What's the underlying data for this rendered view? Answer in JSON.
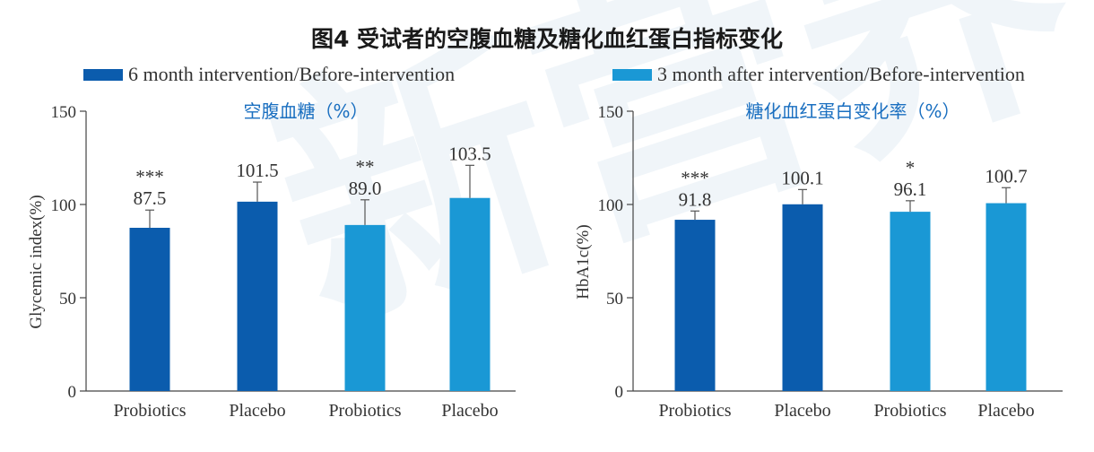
{
  "title": "图4 受试者的空腹血糖及糖化血红蛋白指标变化",
  "legend": [
    {
      "label": "6 month intervention/Before-intervention",
      "color": "#0b5cad"
    },
    {
      "label": "3 month after intervention/Before-intervention",
      "color": "#1a98d5"
    }
  ],
  "watermark": "新营养",
  "chart_data": [
    {
      "type": "bar",
      "title": "空腹血糖（%）",
      "ylabel": "Glycemic index(%)",
      "xlabel": "",
      "ylim": [
        0,
        150
      ],
      "yticks": [
        0,
        50,
        100,
        150
      ],
      "categories": [
        "Probiotics",
        "Placebo",
        "Probiotics",
        "Placebo"
      ],
      "values": [
        87.5,
        101.5,
        89.0,
        103.5
      ],
      "value_labels": [
        "87.5",
        "101.5",
        "89.0",
        "103.5"
      ],
      "error_upper": [
        97.0,
        112.0,
        102.5,
        121.0
      ],
      "significance": [
        "***",
        "",
        "**",
        ""
      ],
      "bar_colors": [
        "#0b5cad",
        "#0b5cad",
        "#1a98d5",
        "#1a98d5"
      ]
    },
    {
      "type": "bar",
      "title": "糖化血红蛋白变化率（%）",
      "ylabel": "HbA1c(%)",
      "xlabel": "",
      "ylim": [
        0,
        150
      ],
      "yticks": [
        0,
        50,
        100,
        150
      ],
      "categories": [
        "Probiotics",
        "Placebo",
        "Probiotics",
        "Placebo"
      ],
      "values": [
        91.8,
        100.1,
        96.1,
        100.7
      ],
      "value_labels": [
        "91.8",
        "100.1",
        "96.1",
        "100.7"
      ],
      "error_upper": [
        96.5,
        108.0,
        102.0,
        109.0
      ],
      "significance": [
        "***",
        "",
        "*",
        ""
      ],
      "bar_colors": [
        "#0b5cad",
        "#0b5cad",
        "#1a98d5",
        "#1a98d5"
      ]
    }
  ]
}
